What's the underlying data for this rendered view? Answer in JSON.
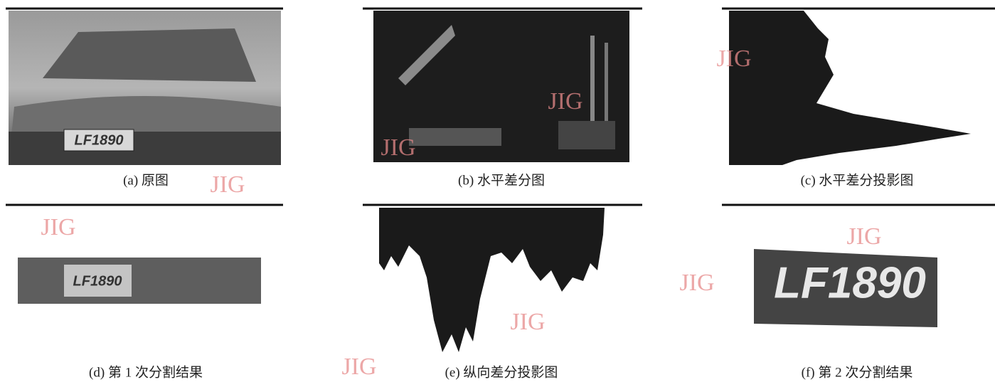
{
  "figure": {
    "panels": [
      {
        "caption": "(a) 原图"
      },
      {
        "caption": "(b) 水平差分图"
      },
      {
        "caption": "(c) 水平差分投影图"
      },
      {
        "caption": "(d) 第 1 次分割结果"
      },
      {
        "caption": "(e) 纵向差分投影图"
      },
      {
        "caption": "(f) 第 2 次分割结果"
      }
    ]
  },
  "plate": "LF1890",
  "watermarks": [
    "JIG",
    "JIG",
    "JIG",
    "JIG",
    "JIG",
    "JIG",
    "JIG",
    "JIG",
    "JIG"
  ]
}
